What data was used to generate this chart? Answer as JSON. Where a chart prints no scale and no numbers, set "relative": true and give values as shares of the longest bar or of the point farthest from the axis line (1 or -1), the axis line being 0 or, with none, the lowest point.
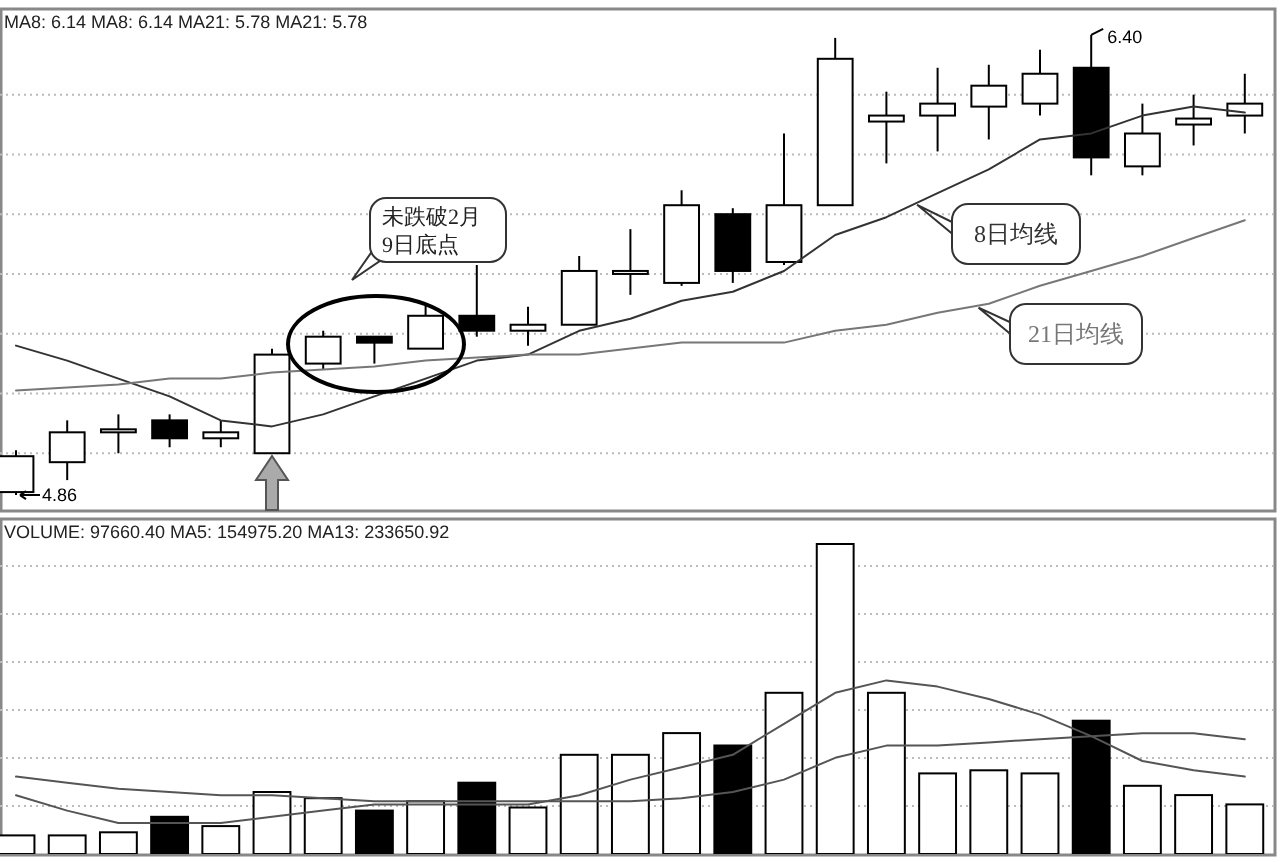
{
  "chart_data": [
    {
      "type": "candlestick",
      "title": "MA8: 6.14  MA8: 6.14  MA21: 5.78  MA21: 5.78",
      "categories": [
        null,
        null,
        null,
        null,
        null,
        null,
        null,
        null,
        null,
        null,
        null,
        null,
        null,
        null,
        null,
        null,
        null,
        null,
        null,
        null,
        null,
        null,
        null,
        null,
        null
      ],
      "ohlc": [
        [
          4.87,
          5.01,
          4.86,
          4.99
        ],
        [
          4.97,
          5.11,
          4.91,
          5.07
        ],
        [
          5.07,
          5.13,
          5.0,
          5.08
        ],
        [
          5.11,
          5.13,
          5.02,
          5.05
        ],
        [
          5.05,
          5.11,
          5.02,
          5.07
        ],
        [
          5.0,
          5.35,
          5.0,
          5.33
        ],
        [
          5.3,
          5.41,
          5.28,
          5.39
        ],
        [
          5.39,
          5.39,
          5.3,
          5.37
        ],
        [
          5.35,
          5.5,
          5.35,
          5.46
        ],
        [
          5.46,
          5.63,
          5.39,
          5.41
        ],
        [
          5.41,
          5.49,
          5.36,
          5.43
        ],
        [
          5.43,
          5.66,
          5.43,
          5.61
        ],
        [
          5.6,
          5.75,
          5.53,
          5.61
        ],
        [
          5.57,
          5.88,
          5.56,
          5.83
        ],
        [
          5.8,
          5.82,
          5.57,
          5.61
        ],
        [
          5.64,
          6.07,
          5.63,
          5.83
        ],
        [
          5.83,
          6.39,
          5.83,
          6.32
        ],
        [
          6.11,
          6.21,
          5.97,
          6.13
        ],
        [
          6.13,
          6.29,
          6.01,
          6.17
        ],
        [
          6.16,
          6.3,
          6.05,
          6.23
        ],
        [
          6.17,
          6.35,
          6.13,
          6.27
        ],
        [
          6.29,
          6.4,
          5.93,
          5.99
        ],
        [
          5.96,
          6.17,
          5.93,
          6.07
        ],
        [
          6.1,
          6.2,
          6.03,
          6.12
        ],
        [
          6.13,
          6.27,
          6.07,
          6.17
        ]
      ],
      "series": [
        {
          "type": "line",
          "name": "8日均线",
          "color": "#333333",
          "values": [
            5.36,
            5.31,
            5.25,
            5.19,
            5.11,
            5.09,
            5.13,
            5.19,
            5.25,
            5.31,
            5.33,
            5.41,
            5.45,
            5.51,
            5.54,
            5.61,
            5.73,
            5.79,
            5.87,
            5.95,
            6.05,
            6.07,
            6.13,
            6.16,
            6.14
          ]
        },
        {
          "type": "line",
          "name": "21日均线",
          "color": "#777777",
          "values": [
            5.21,
            5.22,
            5.23,
            5.25,
            5.25,
            5.27,
            5.28,
            5.29,
            5.31,
            5.32,
            5.33,
            5.33,
            5.35,
            5.37,
            5.37,
            5.37,
            5.41,
            5.43,
            5.47,
            5.5,
            5.56,
            5.61,
            5.66,
            5.72,
            5.78
          ]
        }
      ],
      "ylim": [
        4.81,
        6.49
      ],
      "yticks": [
        {
          "value": 5.0,
          "label": null
        },
        {
          "value": 5.2,
          "label": null
        },
        {
          "value": 5.4,
          "label": null
        },
        {
          "value": 5.6,
          "label": null
        },
        {
          "value": 5.8,
          "label": null
        },
        {
          "value": 6.0,
          "label": null
        },
        {
          "value": 6.2,
          "label": null
        }
      ],
      "tick_labels": false,
      "grid": "y",
      "legend": false,
      "annotations": [
        "未跌破2月9日底点",
        "6.40",
        "4.86"
      ]
    },
    {
      "type": "bar",
      "title": "VOLUME: 97660.40  MA5: 154975.20  MA13: 233650.92",
      "relative": true,
      "categories": [
        null,
        null,
        null,
        null,
        null,
        null,
        null,
        null,
        null,
        null,
        null,
        null,
        null,
        null,
        null,
        null,
        null,
        null,
        null,
        null,
        null,
        null,
        null,
        null,
        null
      ],
      "tick_labels": false,
      "grid": true,
      "legend": false,
      "series": [
        {
          "type": "bar",
          "colors": [
            "#ffffff",
            "#ffffff",
            "#ffffff",
            "#000000",
            "#ffffff",
            "#ffffff",
            "#ffffff",
            "#000000",
            "#ffffff",
            "#000000",
            "#ffffff",
            "#ffffff",
            "#ffffff",
            "#ffffff",
            "#000000",
            "#ffffff",
            "#ffffff",
            "#ffffff",
            "#ffffff",
            "#ffffff",
            "#ffffff",
            "#000000",
            "#ffffff",
            "#ffffff",
            "#ffffff"
          ],
          "values": [
            0.06,
            0.06,
            0.07,
            0.12,
            0.09,
            0.2,
            0.18,
            0.14,
            0.17,
            0.23,
            0.15,
            0.32,
            0.32,
            0.39,
            0.35,
            0.52,
            1,
            0.52,
            0.26,
            0.27,
            0.26,
            0.43,
            0.22,
            0.19,
            0.16
          ]
        },
        {
          "type": "line",
          "color": "#555555",
          "values": [
            0.19,
            0.14,
            0.1,
            0.1,
            0.1,
            0.12,
            0.14,
            0.16,
            0.16,
            0.16,
            0.16,
            0.19,
            0.24,
            0.28,
            0.32,
            0.42,
            0.52,
            0.56,
            0.54,
            0.5,
            0.45,
            0.38,
            0.3,
            0.27,
            0.25
          ]
        },
        {
          "type": "line",
          "color": "#555555",
          "values": [
            0.25,
            0.23,
            0.21,
            0.2,
            0.19,
            0.19,
            0.18,
            0.17,
            0.17,
            0.17,
            0.17,
            0.17,
            0.17,
            0.18,
            0.2,
            0.24,
            0.31,
            0.35,
            0.35,
            0.36,
            0.37,
            0.38,
            0.39,
            0.39,
            0.37
          ]
        }
      ]
    }
  ]
}
